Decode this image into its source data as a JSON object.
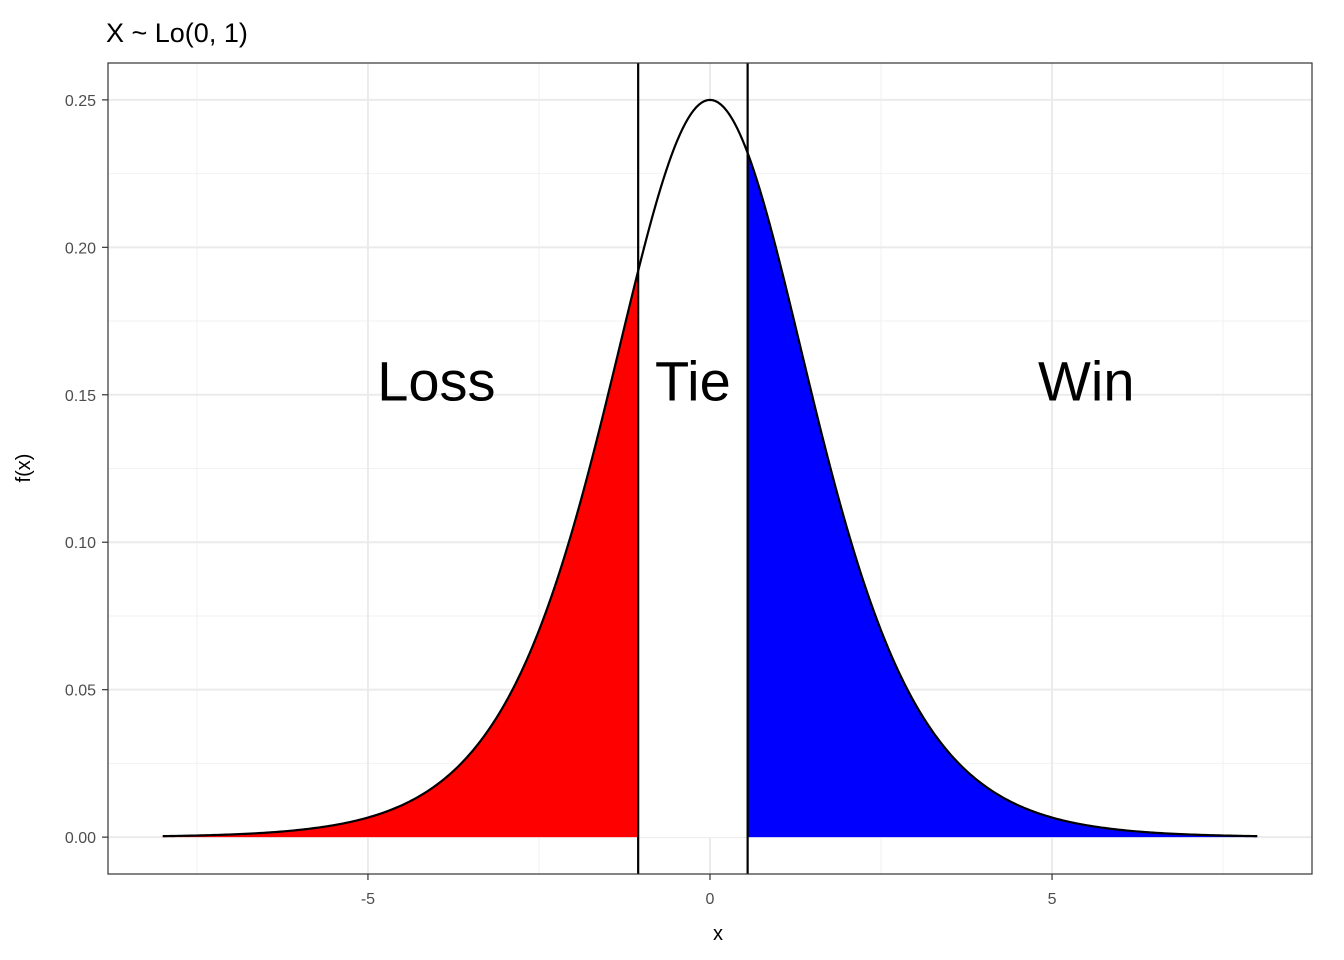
{
  "chart_data": {
    "type": "area",
    "title": "X ~ Lo(0, 1)",
    "xlabel": "x",
    "ylabel": "f(x)",
    "distribution": "logistic",
    "location": 0,
    "scale": 1,
    "x_range": [
      -8,
      8
    ],
    "xlim": [
      -8.8,
      8.8
    ],
    "ylim": [
      -0.0125,
      0.2625
    ],
    "x_ticks": [
      -5,
      0,
      5
    ],
    "x_tick_labels": [
      "-5",
      "0",
      "5"
    ],
    "y_ticks": [
      0,
      0.05,
      0.1,
      0.15,
      0.2,
      0.25
    ],
    "y_tick_labels": [
      "0.00",
      "0.05",
      "0.10",
      "0.15",
      "0.20",
      "0.25"
    ],
    "thresholds": [
      -1.05,
      0.55
    ],
    "grid": true,
    "regions": [
      {
        "label": "Loss",
        "from": -8,
        "to": -1.05,
        "color": "#ff0000",
        "label_x": -4.0,
        "label_y": 0.148
      },
      {
        "label": "Tie",
        "from": -1.05,
        "to": 0.55,
        "color": "#ffffff",
        "label_x": -0.25,
        "label_y": 0.148
      },
      {
        "label": "Win",
        "from": 0.55,
        "to": 8,
        "color": "#0000ff",
        "label_x": 5.5,
        "label_y": 0.148
      }
    ]
  }
}
